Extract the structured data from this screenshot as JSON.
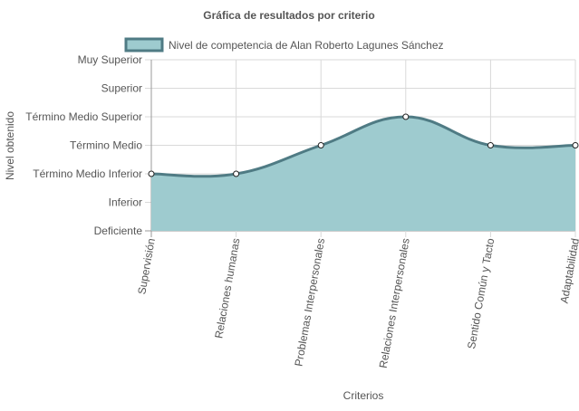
{
  "chart_data": {
    "type": "area",
    "title": "Gráfica de resultados por criterio",
    "xlabel": "Criterios",
    "ylabel": "Nivel obtenido",
    "categories": [
      "Supervisión",
      "Relaciones humanas",
      "Problemas Interpersonales",
      "Relaciones Interpersonales",
      "Sentido Común y Tacto",
      "Adaptabilidad"
    ],
    "y_levels": [
      "Deficiente",
      "Inferior",
      "Término Medio Inferior",
      "Término Medio",
      "Término Medio Superior",
      "Superior",
      "Muy Superior"
    ],
    "ylim": [
      0,
      6
    ],
    "series": [
      {
        "name": "Nivel de competencia de Alan Roberto Lagunes Sánchez",
        "values": [
          2,
          2,
          3,
          4,
          3,
          3
        ]
      }
    ],
    "legend_position": "top",
    "grid": true,
    "colors": {
      "fill": "#9ecbcf",
      "stroke": "#4f7b84",
      "grid": "#d9d9d9",
      "axis": "#9a9a9a",
      "text": "#555555"
    }
  }
}
